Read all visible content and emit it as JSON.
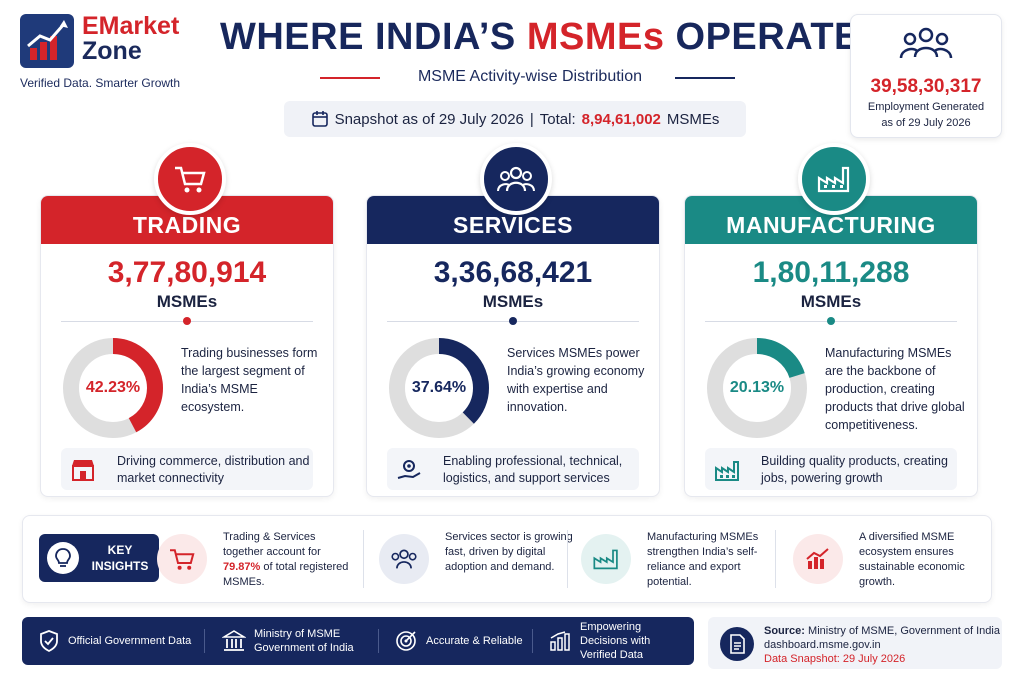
{
  "brand": {
    "name_line1": "EMarket",
    "name_line2": "Zone",
    "tagline": "Verified Data. Smarter Growth"
  },
  "title": {
    "part1": "WHERE INDIA’S ",
    "highlight": "MSMEs",
    "part2": " OPERATE",
    "subtitle": "MSME Activity-wise Distribution"
  },
  "snapshot": {
    "prefix": "Snapshot as of 29 July 2026",
    "separator": "|",
    "total_label": "Total:",
    "total_value": "8,94,61,002",
    "total_suffix": "MSMEs"
  },
  "employment": {
    "value": "39,58,30,317",
    "label_line1": "Employment Generated",
    "label_line2": "as of 29 July 2026"
  },
  "sectors": [
    {
      "name": "TRADING",
      "count": "3,77,80,914",
      "unit": "MSMEs",
      "percent_label": "42.23%",
      "percent": 42.23,
      "color": "#d4242a",
      "description": "Trading businesses form the largest segment of India’s MSME ecosystem.",
      "footer": "Driving commerce, distribution and market connectivity",
      "icon": "cart-icon",
      "footer_icon": "store-icon"
    },
    {
      "name": "SERVICES",
      "count": "3,36,68,421",
      "unit": "MSMEs",
      "percent_label": "37.64%",
      "percent": 37.64,
      "color": "#16275e",
      "description": "Services MSMEs power India’s growing economy with expertise and innovation.",
      "footer": "Enabling professional, technical, logistics, and support services",
      "icon": "people-icon",
      "footer_icon": "gear-hand-icon"
    },
    {
      "name": "MANUFACTURING",
      "count": "1,80,11,288",
      "unit": "MSMEs",
      "percent_label": "20.13%",
      "percent": 20.13,
      "color": "#1a8a85",
      "description": "Manufacturing MSMEs are the backbone of production, creating products that drive global competitiveness.",
      "footer": "Building quality products, creating jobs, powering growth",
      "icon": "factory-icon",
      "footer_icon": "factory-icon"
    }
  ],
  "insights": {
    "badge_line1": "KEY",
    "badge_line2": "INSIGHTS",
    "items": [
      {
        "pre": "Trading & Services together account for ",
        "highlight": "79.87%",
        "post": " of total registered MSMEs.",
        "icon": "cart-icon"
      },
      {
        "pre": "Services sector is growing fast, driven by digital adoption and demand.",
        "highlight": "",
        "post": "",
        "icon": "people-icon"
      },
      {
        "pre": "Manufacturing MSMEs strengthen India’s self-reliance and export potential.",
        "highlight": "",
        "post": "",
        "icon": "factory-icon"
      },
      {
        "pre": "A diversified MSME ecosystem ensures sustainable economic growth.",
        "highlight": "",
        "post": "",
        "icon": "growth-chart-icon"
      }
    ]
  },
  "footer_bar": {
    "items": [
      {
        "label": "Official Government Data",
        "icon": "shield-icon"
      },
      {
        "label": "Ministry of MSME Government of India",
        "icon": "government-building-icon"
      },
      {
        "label": "Accurate & Reliable",
        "icon": "target-icon"
      },
      {
        "label": "Empowering Decisions with Verified Data",
        "icon": "bar-chart-icon"
      }
    ]
  },
  "source": {
    "label": "Source:",
    "text": "Ministry of MSME, Government of India",
    "url": "dashboard.msme.gov.in",
    "snapshot": "Data Snapshot: 29 July 2026"
  }
}
